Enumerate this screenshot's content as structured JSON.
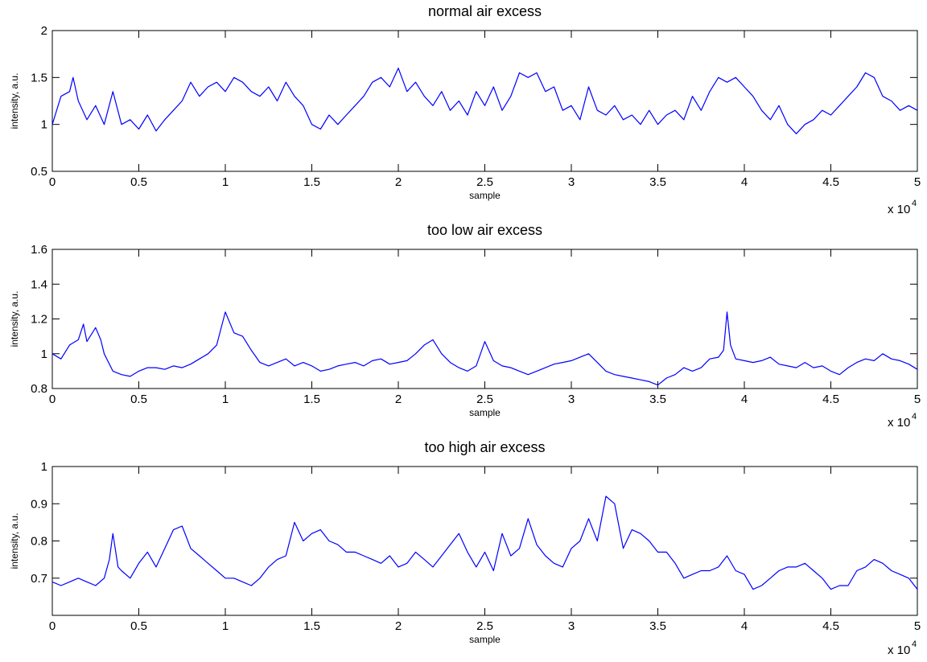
{
  "chart_data": [
    {
      "type": "line",
      "title": "normal air excess",
      "xlabel": "sample",
      "ylabel": "intensity, a.u.",
      "xlim": [
        0,
        50000
      ],
      "ylim": [
        0.5,
        2
      ],
      "x_multiplier": "x 10",
      "x_multiplier_exp": "4",
      "xticks": [
        0,
        0.5,
        1,
        1.5,
        2,
        2.5,
        3,
        3.5,
        4,
        4.5,
        5
      ],
      "xtick_labels": [
        "0",
        "0.5",
        "1",
        "1.5",
        "2",
        "2.5",
        "3",
        "3.5",
        "4",
        "4.5",
        "5"
      ],
      "yticks": [
        0.5,
        1,
        1.5,
        2
      ],
      "ytick_labels": [
        "0.5",
        "1",
        "1.5",
        "2"
      ],
      "grid": false,
      "color": "#0000ff",
      "series": [
        {
          "x": [
            0,
            500,
            1000,
            1200,
            1500,
            2000,
            2500,
            3000,
            3500,
            4000,
            4500,
            5000,
            5500,
            6000,
            6500,
            7000,
            7500,
            8000,
            8500,
            9000,
            9500,
            10000,
            10500,
            11000,
            11500,
            12000,
            12500,
            13000,
            13500,
            14000,
            14500,
            15000,
            15500,
            16000,
            16500,
            17000,
            17500,
            18000,
            18500,
            19000,
            19500,
            20000,
            20500,
            21000,
            21500,
            22000,
            22500,
            23000,
            23500,
            24000,
            24500,
            25000,
            25500,
            26000,
            26500,
            27000,
            27500,
            28000,
            28500,
            29000,
            29500,
            30000,
            30500,
            31000,
            31500,
            32000,
            32500,
            33000,
            33500,
            34000,
            34500,
            35000,
            35500,
            36000,
            36500,
            37000,
            37500,
            38000,
            38500,
            39000,
            39500,
            40000,
            40500,
            41000,
            41500,
            42000,
            42500,
            43000,
            43500,
            44000,
            44500,
            45000,
            45500,
            46000,
            46500,
            47000,
            47500,
            48000,
            48500,
            49000,
            49500,
            50000
          ],
          "y": [
            1.0,
            1.3,
            1.35,
            1.5,
            1.25,
            1.05,
            1.2,
            1.0,
            1.35,
            1.0,
            1.05,
            0.95,
            1.1,
            0.93,
            1.05,
            1.15,
            1.25,
            1.45,
            1.3,
            1.4,
            1.45,
            1.35,
            1.5,
            1.45,
            1.35,
            1.3,
            1.4,
            1.25,
            1.45,
            1.3,
            1.2,
            1.0,
            0.95,
            1.1,
            1.0,
            1.1,
            1.2,
            1.3,
            1.45,
            1.5,
            1.4,
            1.6,
            1.35,
            1.45,
            1.3,
            1.2,
            1.35,
            1.15,
            1.25,
            1.1,
            1.35,
            1.2,
            1.4,
            1.15,
            1.3,
            1.55,
            1.5,
            1.55,
            1.35,
            1.4,
            1.15,
            1.2,
            1.05,
            1.4,
            1.15,
            1.1,
            1.2,
            1.05,
            1.1,
            1.0,
            1.15,
            1.0,
            1.1,
            1.15,
            1.05,
            1.3,
            1.15,
            1.35,
            1.5,
            1.45,
            1.5,
            1.4,
            1.3,
            1.15,
            1.05,
            1.2,
            1.0,
            0.9,
            1.0,
            1.05,
            1.15,
            1.1,
            1.2,
            1.3,
            1.4,
            1.55,
            1.5,
            1.3,
            1.25,
            1.15,
            1.2,
            1.15
          ]
        }
      ]
    },
    {
      "type": "line",
      "title": "too low air excess",
      "xlabel": "sample",
      "ylabel": "intensity, a.u.",
      "xlim": [
        0,
        50000
      ],
      "ylim": [
        0.8,
        1.6
      ],
      "x_multiplier": "x 10",
      "x_multiplier_exp": "4",
      "xticks": [
        0,
        0.5,
        1,
        1.5,
        2,
        2.5,
        3,
        3.5,
        4,
        4.5,
        5
      ],
      "xtick_labels": [
        "0",
        "0.5",
        "1",
        "1.5",
        "2",
        "2.5",
        "3",
        "3.5",
        "4",
        "4.5",
        "5"
      ],
      "yticks": [
        0.8,
        1.0,
        1.2,
        1.4,
        1.6
      ],
      "ytick_labels": [
        "0.8",
        "1",
        "1.2",
        "1.4",
        "1.6"
      ],
      "grid": false,
      "color": "#0000ff",
      "series": [
        {
          "x": [
            0,
            500,
            1000,
            1500,
            1800,
            2000,
            2500,
            2800,
            3000,
            3500,
            4000,
            4500,
            5000,
            5500,
            6000,
            6500,
            7000,
            7500,
            8000,
            8500,
            9000,
            9500,
            10000,
            10500,
            11000,
            11500,
            12000,
            12500,
            13000,
            13500,
            14000,
            14500,
            15000,
            15500,
            16000,
            16500,
            17000,
            17500,
            18000,
            18500,
            19000,
            19500,
            20000,
            20500,
            21000,
            21500,
            22000,
            22500,
            23000,
            23500,
            24000,
            24500,
            25000,
            25500,
            26000,
            26500,
            27000,
            27500,
            28000,
            28500,
            29000,
            29500,
            30000,
            30500,
            31000,
            31500,
            32000,
            32500,
            33000,
            33500,
            34000,
            34500,
            35000,
            35500,
            36000,
            36500,
            37000,
            37500,
            38000,
            38500,
            38800,
            39000,
            39200,
            39500,
            40000,
            40500,
            41000,
            41500,
            42000,
            42500,
            43000,
            43500,
            44000,
            44500,
            45000,
            45500,
            46000,
            46500,
            47000,
            47500,
            48000,
            48500,
            49000,
            49500,
            50000
          ],
          "y": [
            1.0,
            0.97,
            1.05,
            1.08,
            1.17,
            1.07,
            1.15,
            1.08,
            1.0,
            0.9,
            0.88,
            0.87,
            0.9,
            0.92,
            0.92,
            0.91,
            0.93,
            0.92,
            0.94,
            0.97,
            1.0,
            1.05,
            1.24,
            1.12,
            1.1,
            1.02,
            0.95,
            0.93,
            0.95,
            0.97,
            0.93,
            0.95,
            0.93,
            0.9,
            0.91,
            0.93,
            0.94,
            0.95,
            0.93,
            0.96,
            0.97,
            0.94,
            0.95,
            0.96,
            1.0,
            1.05,
            1.08,
            1.0,
            0.95,
            0.92,
            0.9,
            0.93,
            1.07,
            0.96,
            0.93,
            0.92,
            0.9,
            0.88,
            0.9,
            0.92,
            0.94,
            0.95,
            0.96,
            0.98,
            1.0,
            0.95,
            0.9,
            0.88,
            0.87,
            0.86,
            0.85,
            0.84,
            0.82,
            0.86,
            0.88,
            0.92,
            0.9,
            0.92,
            0.97,
            0.98,
            1.02,
            1.24,
            1.05,
            0.97,
            0.96,
            0.95,
            0.96,
            0.98,
            0.94,
            0.93,
            0.92,
            0.95,
            0.92,
            0.93,
            0.9,
            0.88,
            0.92,
            0.95,
            0.97,
            0.96,
            1.0,
            0.97,
            0.96,
            0.94,
            0.91
          ]
        }
      ]
    },
    {
      "type": "line",
      "title": "too high air excess",
      "xlabel": "sample",
      "ylabel": "intensity, a.u.",
      "xlim": [
        0,
        50000
      ],
      "ylim": [
        0.6,
        1.0
      ],
      "x_multiplier": "x 10",
      "x_multiplier_exp": "4",
      "xticks": [
        0,
        0.5,
        1,
        1.5,
        2,
        2.5,
        3,
        3.5,
        4,
        4.5,
        5
      ],
      "xtick_labels": [
        "0",
        "0.5",
        "1",
        "1.5",
        "2",
        "2.5",
        "3",
        "3.5",
        "4",
        "4.5",
        "5"
      ],
      "yticks": [
        0.7,
        0.8,
        0.9,
        1.0
      ],
      "ytick_labels": [
        "0.7",
        "0.8",
        "0.9",
        "1"
      ],
      "grid": false,
      "color": "#0000ff",
      "series": [
        {
          "x": [
            0,
            500,
            1000,
            1500,
            2000,
            2500,
            3000,
            3300,
            3500,
            3800,
            4000,
            4500,
            5000,
            5500,
            6000,
            6500,
            7000,
            7500,
            8000,
            8500,
            9000,
            9500,
            10000,
            10500,
            11000,
            11500,
            12000,
            12500,
            13000,
            13500,
            14000,
            14500,
            15000,
            15500,
            16000,
            16500,
            17000,
            17500,
            18000,
            18500,
            19000,
            19500,
            20000,
            20500,
            21000,
            21500,
            22000,
            22500,
            23000,
            23500,
            24000,
            24500,
            25000,
            25500,
            26000,
            26500,
            27000,
            27500,
            28000,
            28500,
            29000,
            29500,
            30000,
            30500,
            31000,
            31500,
            32000,
            32500,
            33000,
            33500,
            34000,
            34500,
            35000,
            35500,
            36000,
            36500,
            37000,
            37500,
            38000,
            38500,
            39000,
            39500,
            40000,
            40500,
            41000,
            41500,
            42000,
            42500,
            43000,
            43500,
            44000,
            44500,
            45000,
            45500,
            46000,
            46500,
            47000,
            47500,
            48000,
            48500,
            49000,
            49500,
            50000
          ],
          "y": [
            0.69,
            0.68,
            0.69,
            0.7,
            0.69,
            0.68,
            0.7,
            0.75,
            0.82,
            0.73,
            0.72,
            0.7,
            0.74,
            0.77,
            0.73,
            0.78,
            0.83,
            0.84,
            0.78,
            0.76,
            0.74,
            0.72,
            0.7,
            0.7,
            0.69,
            0.68,
            0.7,
            0.73,
            0.75,
            0.76,
            0.85,
            0.8,
            0.82,
            0.83,
            0.8,
            0.79,
            0.77,
            0.77,
            0.76,
            0.75,
            0.74,
            0.76,
            0.73,
            0.74,
            0.77,
            0.75,
            0.73,
            0.76,
            0.79,
            0.82,
            0.77,
            0.73,
            0.77,
            0.72,
            0.82,
            0.76,
            0.78,
            0.86,
            0.79,
            0.76,
            0.74,
            0.73,
            0.78,
            0.8,
            0.86,
            0.8,
            0.92,
            0.9,
            0.78,
            0.83,
            0.82,
            0.8,
            0.77,
            0.77,
            0.74,
            0.7,
            0.71,
            0.72,
            0.72,
            0.73,
            0.76,
            0.72,
            0.71,
            0.67,
            0.68,
            0.7,
            0.72,
            0.73,
            0.73,
            0.74,
            0.72,
            0.7,
            0.67,
            0.68,
            0.68,
            0.72,
            0.73,
            0.75,
            0.74,
            0.72,
            0.71,
            0.7,
            0.67
          ]
        }
      ]
    }
  ]
}
